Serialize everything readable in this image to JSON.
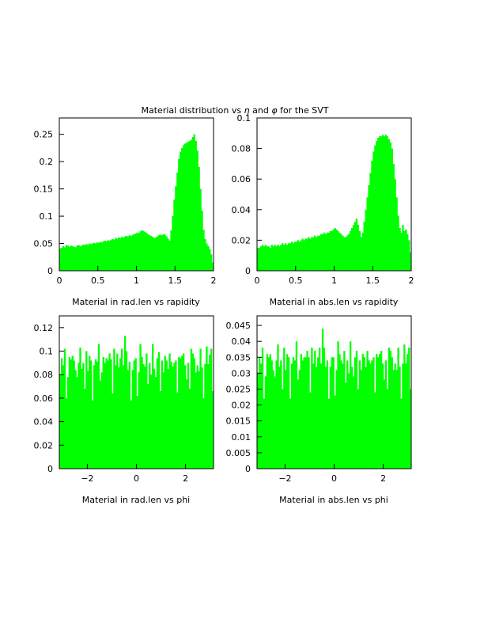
{
  "page_title_parts": [
    "Material distribution vs ",
    "η",
    " and ",
    "φ",
    " for the SVT"
  ],
  "colors": {
    "fill": "#00ff00",
    "frame": "#000000",
    "background": "#ffffff"
  },
  "chart_data": [
    {
      "type": "bar",
      "caption": "Material in rad.len vs rapidity",
      "xlim": [
        0,
        2
      ],
      "ylim": [
        0,
        0.28
      ],
      "x_ticks": [
        0,
        0.5,
        1,
        1.5,
        2
      ],
      "x_tick_labels": [
        "0",
        "0.5",
        "1",
        "1.5",
        "2"
      ],
      "y_ticks": [
        0,
        0.05,
        0.1,
        0.15,
        0.2,
        0.25
      ],
      "y_tick_labels": [
        "0",
        "0.05",
        "0.1",
        "0.15",
        "0.2",
        "0.25"
      ],
      "bin_edges_start": 0,
      "bin_width": 0.02,
      "values": [
        0.041,
        0.042,
        0.045,
        0.043,
        0.047,
        0.046,
        0.044,
        0.046,
        0.045,
        0.044,
        0.043,
        0.046,
        0.047,
        0.045,
        0.046,
        0.048,
        0.047,
        0.049,
        0.048,
        0.05,
        0.049,
        0.05,
        0.051,
        0.05,
        0.052,
        0.051,
        0.053,
        0.052,
        0.054,
        0.055,
        0.054,
        0.056,
        0.055,
        0.057,
        0.058,
        0.057,
        0.06,
        0.059,
        0.061,
        0.06,
        0.062,
        0.061,
        0.063,
        0.064,
        0.063,
        0.065,
        0.064,
        0.066,
        0.067,
        0.068,
        0.07,
        0.069,
        0.072,
        0.074,
        0.073,
        0.071,
        0.069,
        0.067,
        0.065,
        0.064,
        0.062,
        0.06,
        0.061,
        0.063,
        0.065,
        0.066,
        0.065,
        0.067,
        0.066,
        0.063,
        0.059,
        0.055,
        0.074,
        0.1,
        0.13,
        0.155,
        0.18,
        0.205,
        0.218,
        0.225,
        0.23,
        0.233,
        0.235,
        0.236,
        0.238,
        0.24,
        0.245,
        0.25,
        0.238,
        0.22,
        0.19,
        0.15,
        0.11,
        0.075,
        0.058,
        0.05,
        0.045,
        0.04,
        0.03,
        0.015
      ]
    },
    {
      "type": "bar",
      "caption": "Material in abs.len vs rapidity",
      "xlim": [
        0,
        2
      ],
      "ylim": [
        0,
        0.1
      ],
      "x_ticks": [
        0,
        0.5,
        1,
        1.5,
        2
      ],
      "x_tick_labels": [
        "0",
        "0.5",
        "1",
        "1.5",
        "2"
      ],
      "y_ticks": [
        0,
        0.02,
        0.04,
        0.06,
        0.08,
        0.1
      ],
      "y_tick_labels": [
        "0",
        "0.02",
        "0.04",
        "0.06",
        "0.08",
        "0.1"
      ],
      "bin_edges_start": 0,
      "bin_width": 0.02,
      "values": [
        0.015,
        0.015,
        0.016,
        0.017,
        0.016,
        0.017,
        0.016,
        0.016,
        0.015,
        0.017,
        0.016,
        0.017,
        0.016,
        0.017,
        0.016,
        0.017,
        0.018,
        0.017,
        0.018,
        0.017,
        0.018,
        0.018,
        0.019,
        0.018,
        0.019,
        0.019,
        0.02,
        0.019,
        0.02,
        0.021,
        0.02,
        0.021,
        0.021,
        0.022,
        0.021,
        0.022,
        0.022,
        0.023,
        0.022,
        0.023,
        0.023,
        0.024,
        0.024,
        0.025,
        0.024,
        0.025,
        0.025,
        0.026,
        0.026,
        0.027,
        0.028,
        0.027,
        0.026,
        0.025,
        0.024,
        0.023,
        0.022,
        0.022,
        0.023,
        0.024,
        0.026,
        0.028,
        0.03,
        0.032,
        0.034,
        0.03,
        0.026,
        0.022,
        0.025,
        0.032,
        0.04,
        0.048,
        0.056,
        0.064,
        0.072,
        0.078,
        0.082,
        0.085,
        0.087,
        0.088,
        0.088,
        0.089,
        0.088,
        0.089,
        0.088,
        0.086,
        0.084,
        0.08,
        0.07,
        0.06,
        0.048,
        0.036,
        0.028,
        0.025,
        0.03,
        0.026,
        0.027,
        0.024,
        0.02,
        0.012
      ]
    },
    {
      "type": "bar",
      "caption": "Material in rad.len vs phi",
      "xlim": [
        -3.1416,
        3.1416
      ],
      "ylim": [
        0,
        0.13
      ],
      "x_ticks": [
        -2,
        0,
        2
      ],
      "x_tick_labels": [
        "−2",
        "0",
        "2"
      ],
      "y_ticks": [
        0,
        0.02,
        0.04,
        0.06,
        0.08,
        0.1,
        0.12
      ],
      "y_tick_labels": [
        "0",
        "0.02",
        "0.04",
        "0.06",
        "0.08",
        "0.1",
        "0.12"
      ],
      "bin_edges_start": -3.1416,
      "bin_width": 0.062832,
      "values": [
        0.08,
        0.094,
        0.088,
        0.102,
        0.06,
        0.078,
        0.095,
        0.093,
        0.096,
        0.092,
        0.084,
        0.078,
        0.09,
        0.103,
        0.085,
        0.09,
        0.068,
        0.1,
        0.083,
        0.096,
        0.092,
        0.058,
        0.088,
        0.093,
        0.091,
        0.106,
        0.075,
        0.082,
        0.095,
        0.09,
        0.094,
        0.092,
        0.098,
        0.093,
        0.064,
        0.102,
        0.088,
        0.098,
        0.086,
        0.094,
        0.102,
        0.088,
        0.113,
        0.1,
        0.084,
        0.091,
        0.058,
        0.084,
        0.092,
        0.094,
        0.062,
        0.082,
        0.106,
        0.095,
        0.089,
        0.087,
        0.098,
        0.072,
        0.09,
        0.08,
        0.106,
        0.085,
        0.078,
        0.094,
        0.099,
        0.066,
        0.092,
        0.082,
        0.096,
        0.092,
        0.085,
        0.098,
        0.091,
        0.087,
        0.09,
        0.092,
        0.065,
        0.095,
        0.094,
        0.096,
        0.098,
        0.088,
        0.076,
        0.09,
        0.068,
        0.102,
        0.098,
        0.094,
        0.082,
        0.088,
        0.083,
        0.102,
        0.086,
        0.06,
        0.089,
        0.104,
        0.089,
        0.097,
        0.102,
        0.066
      ]
    },
    {
      "type": "bar",
      "caption": "Material in abs.len vs phi",
      "xlim": [
        -3.1416,
        3.1416
      ],
      "ylim": [
        0,
        0.048
      ],
      "x_ticks": [
        -2,
        0,
        2
      ],
      "x_tick_labels": [
        "−2",
        "0",
        "2"
      ],
      "y_ticks": [
        0,
        0.005,
        0.01,
        0.015,
        0.02,
        0.025,
        0.03,
        0.035,
        0.04,
        0.045
      ],
      "y_tick_labels": [
        "0",
        "0.005",
        "0.01",
        "0.015",
        "0.02",
        "0.025",
        "0.03",
        "0.035",
        "0.04",
        "0.045"
      ],
      "bin_edges_start": -3.1416,
      "bin_width": 0.062832,
      "values": [
        0.03,
        0.035,
        0.033,
        0.038,
        0.022,
        0.029,
        0.036,
        0.035,
        0.036,
        0.034,
        0.031,
        0.029,
        0.034,
        0.039,
        0.032,
        0.034,
        0.025,
        0.038,
        0.031,
        0.036,
        0.035,
        0.022,
        0.033,
        0.035,
        0.034,
        0.04,
        0.028,
        0.031,
        0.036,
        0.034,
        0.035,
        0.035,
        0.037,
        0.035,
        0.024,
        0.038,
        0.033,
        0.037,
        0.032,
        0.035,
        0.038,
        0.033,
        0.044,
        0.038,
        0.032,
        0.034,
        0.022,
        0.032,
        0.035,
        0.035,
        0.023,
        0.031,
        0.04,
        0.036,
        0.034,
        0.033,
        0.037,
        0.027,
        0.034,
        0.03,
        0.04,
        0.032,
        0.029,
        0.035,
        0.037,
        0.025,
        0.034,
        0.031,
        0.036,
        0.035,
        0.032,
        0.037,
        0.034,
        0.033,
        0.034,
        0.035,
        0.024,
        0.036,
        0.035,
        0.036,
        0.037,
        0.033,
        0.028,
        0.034,
        0.025,
        0.038,
        0.037,
        0.035,
        0.031,
        0.033,
        0.031,
        0.038,
        0.032,
        0.022,
        0.033,
        0.039,
        0.033,
        0.036,
        0.038,
        0.025
      ]
    }
  ]
}
